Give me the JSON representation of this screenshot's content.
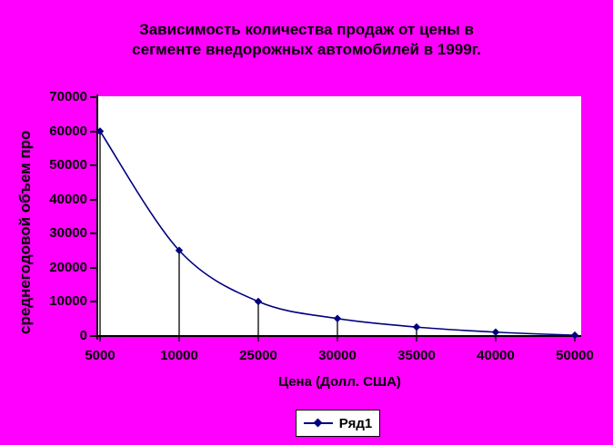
{
  "title": {
    "line1": "Зависимость количества продаж от цены в",
    "line2": "сегменте внедорожных автомобилей в 1999г."
  },
  "legend": {
    "label": "Ряд1"
  },
  "colors": {
    "background": "#FF00FF",
    "plot_background": "#FFFFFF",
    "series_line": "#000080",
    "drop_line": "#000000",
    "axis": "#000000",
    "text": "#000000"
  },
  "chart_data": {
    "type": "line",
    "smoothed": true,
    "categories": [
      "5000",
      "10000",
      "25000",
      "30000",
      "35000",
      "40000",
      "50000"
    ],
    "series": [
      {
        "name": "Ряд1",
        "values": [
          60000,
          25000,
          10000,
          5000,
          2500,
          1000,
          100
        ]
      }
    ],
    "title": "Зависимость количества продаж от цены в сегменте внедорожных автомобилей в 1999г.",
    "xlabel": "Цена (Долл. США)",
    "ylabel": "среднегодовой объем про",
    "ylim": [
      0,
      70000
    ],
    "y_ticks": [
      0,
      10000,
      20000,
      30000,
      40000,
      50000,
      60000,
      70000
    ],
    "grid": false,
    "legend_position": "bottom",
    "drop_lines": true,
    "marker": "diamond"
  }
}
